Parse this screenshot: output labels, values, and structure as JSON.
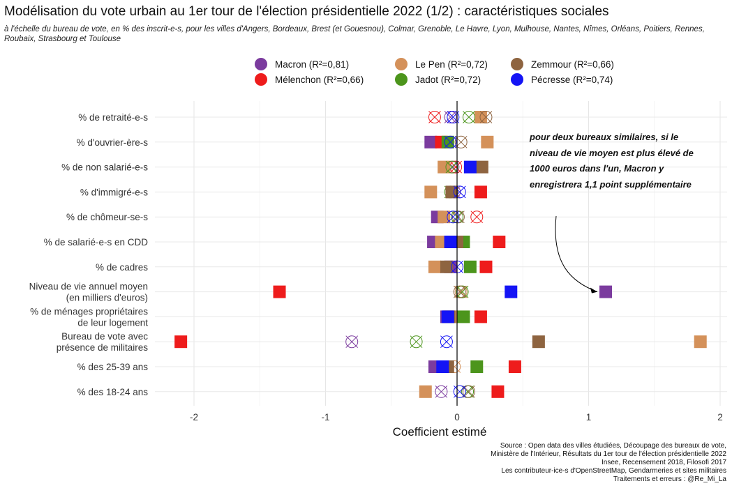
{
  "title": "Modélisation du vote urbain au 1er tour de l'élection présidentielle 2022 (1/2) : caractéristiques sociales",
  "subtitle": "à l'échelle du bureau de vote, en % des inscrit-e-s, pour les villes d'Angers, Bordeaux, Brest (et Gouesnou), Colmar, Grenoble, Le Havre, Lyon, Mulhouse, Nantes, Nîmes, Orléans, Poitiers, Rennes, Roubaix, Strasbourg et Toulouse",
  "caption": [
    "Source : Open data des villes étudiées, Découpage des bureaux de vote,",
    "Ministère de l'Intérieur, Résultats du 1er tour de l'élection présidentielle 2022",
    "Insee, Recensement 2018, Filosofi 2017",
    "Les contributeur-ice-s d'OpenStreetMap, Gendarmeries et sites militaires",
    "Traitements et erreurs : @Re_Mi_La"
  ],
  "annotation": "pour deux bureaux similaires, si le niveau de vie moyen est plus élevé de 1000 euros dans l'un, Macron y enregistrera 1,1 point supplémentaire",
  "colors": {
    "Macron": "#7b3b9e",
    "Le Pen": "#d4915a",
    "Zemmour": "#8e6440",
    "Mélenchon": "#ee1c1c",
    "Jadot": "#4c951c",
    "Pécresse": "#1414f5"
  },
  "chart_data": {
    "type": "scatter",
    "xlabel": "Coefficient estimé",
    "ylabel": "",
    "xlim": [
      -2.25,
      2.05
    ],
    "xticks": [
      -2,
      -1,
      0,
      1,
      2
    ],
    "xtick_labels": [
      "-2",
      "-1",
      "0",
      "1",
      "2"
    ],
    "grid": true,
    "legend_position": "top",
    "marker_encoding": "filled square = significant, circled cross = not significant",
    "categories": [
      "% de retraité-e-s",
      "% d'ouvrier-ère-s",
      "% de non salarié-e-s",
      "% d'immigré-e-s",
      "% de chômeur-se-s",
      "% de salarié-e-s en CDD",
      "% de cadres",
      "Niveau de vie annuel moyen\n(en milliers d'euros)",
      "% de ménages propriétaires\nde leur logement",
      "Bureau de vote avec\nprésence de militaires",
      "% des 25-39 ans",
      "% des 18-24 ans"
    ],
    "series": [
      {
        "name": "Macron",
        "legend_label": "Macron (R²=0,81)",
        "values": [
          -0.05,
          -0.2,
          -0.03,
          -0.02,
          -0.15,
          -0.18,
          -0.05,
          1.13,
          -0.08,
          -0.8,
          -0.17,
          -0.12
        ],
        "significant": [
          false,
          true,
          false,
          false,
          true,
          true,
          true,
          true,
          true,
          false,
          true,
          false
        ]
      },
      {
        "name": "Mélenchon",
        "legend_label": "Mélenchon (R²=0,66)",
        "values": [
          -0.17,
          -0.12,
          -0.01,
          0.18,
          0.15,
          0.32,
          0.22,
          -1.35,
          0.18,
          -2.1,
          0.44,
          0.31
        ],
        "significant": [
          false,
          true,
          false,
          true,
          false,
          true,
          true,
          true,
          true,
          true,
          true,
          true
        ]
      },
      {
        "name": "Le Pen",
        "legend_label": "Le Pen (R²=0,72)",
        "values": [
          0.18,
          0.23,
          -0.1,
          -0.2,
          -0.1,
          -0.12,
          -0.17,
          0.03,
          -0.05,
          1.85,
          -0.02,
          -0.24
        ],
        "significant": [
          true,
          true,
          true,
          true,
          true,
          true,
          true,
          false,
          true,
          true,
          false,
          true
        ]
      },
      {
        "name": "Jadot",
        "legend_label": "Jadot (R²=0,72)",
        "values": [
          0.09,
          -0.07,
          -0.04,
          -0.05,
          0.0,
          0.05,
          0.1,
          0.04,
          0.05,
          -0.31,
          0.15,
          0.08
        ],
        "significant": [
          false,
          true,
          false,
          false,
          false,
          true,
          true,
          false,
          true,
          false,
          true,
          false
        ]
      },
      {
        "name": "Zemmour",
        "legend_label": "Zemmour (R²=0,66)",
        "values": [
          0.22,
          0.03,
          0.19,
          -0.04,
          0.01,
          0.0,
          -0.08,
          0.02,
          -0.06,
          0.62,
          -0.07,
          0.09
        ],
        "significant": [
          false,
          false,
          true,
          true,
          false,
          true,
          true,
          false,
          true,
          true,
          true,
          false
        ]
      },
      {
        "name": "Pécresse",
        "legend_label": "Pécresse (R²=0,74)",
        "values": [
          -0.03,
          -0.05,
          0.1,
          0.02,
          -0.03,
          -0.05,
          0.0,
          0.41,
          -0.07,
          -0.08,
          -0.11,
          0.02
        ],
        "significant": [
          false,
          false,
          true,
          false,
          false,
          true,
          false,
          true,
          true,
          false,
          true,
          false
        ]
      }
    ]
  }
}
